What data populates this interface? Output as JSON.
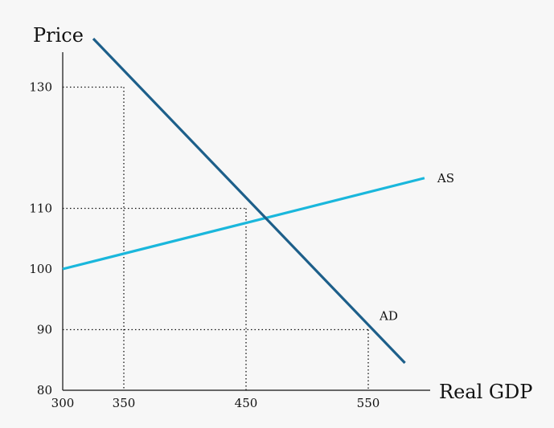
{
  "chart_data": {
    "type": "line",
    "xlabel": "Real GDP",
    "ylabel": "Price",
    "xlim": [
      300,
      600
    ],
    "ylim": [
      80,
      140
    ],
    "x_ticks": [
      {
        "value": 300,
        "label": "300"
      },
      {
        "value": 350,
        "label": "350"
      },
      {
        "value": 450,
        "label": "450"
      },
      {
        "value": 550,
        "label": "550"
      }
    ],
    "y_ticks": [
      {
        "value": 80,
        "label": "80"
      },
      {
        "value": 90,
        "label": "90"
      },
      {
        "value": 100,
        "label": "100"
      },
      {
        "value": 110,
        "label": "110"
      },
      {
        "value": 130,
        "label": "130"
      }
    ],
    "series": [
      {
        "name": "AS",
        "color": "#1ab7dc",
        "points": [
          [
            300,
            100
          ],
          [
            596,
            115
          ]
        ]
      },
      {
        "name": "AD",
        "color": "#1d5f8a",
        "points": [
          [
            325,
            138
          ],
          [
            580,
            84.5
          ]
        ]
      }
    ],
    "reference_points": [
      {
        "x": 350,
        "y": 130
      },
      {
        "x": 450,
        "y": 110
      },
      {
        "x": 550,
        "y": 90
      }
    ],
    "grid": false,
    "legend": "none"
  }
}
